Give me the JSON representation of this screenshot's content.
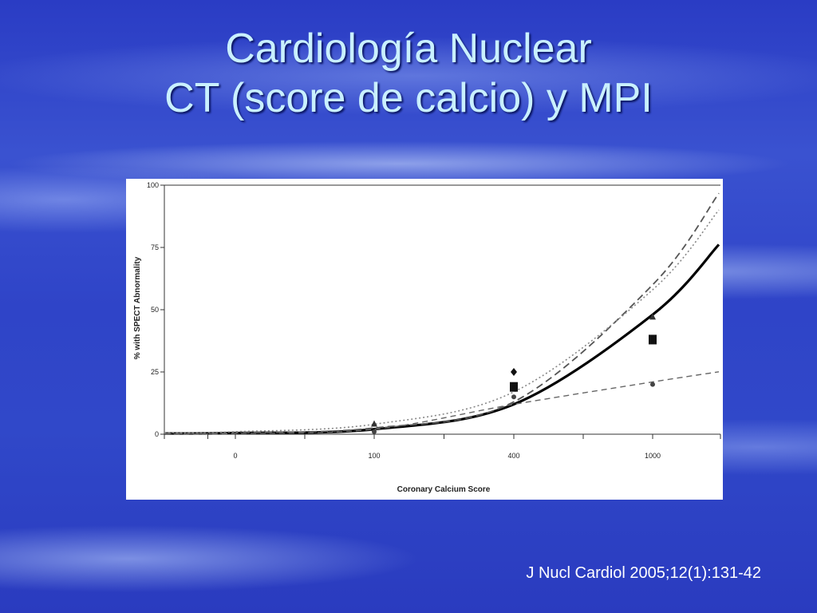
{
  "slide": {
    "title_line1": "Cardiología Nuclear",
    "title_line2": "CT (score de calcio) y MPI",
    "citation": "J Nucl Cardiol 2005;12(1):131-42"
  },
  "chart_data": {
    "type": "line",
    "xlabel": "Coronary Calcium Score",
    "ylabel": "% with SPECT Abnormality",
    "ylim": [
      0,
      100
    ],
    "x_ticks": [
      "0",
      "100",
      "400",
      "1000"
    ],
    "y_ticks": [
      "0",
      "25",
      "50",
      "75",
      "100"
    ],
    "grid": false,
    "series": [
      {
        "style": "solid-thick",
        "color": "#000000",
        "y_at_ticks": [
          0.5,
          2,
          12,
          48
        ]
      },
      {
        "style": "dashed-long",
        "color": "#555555",
        "y_at_ticks": [
          0.5,
          2.5,
          13,
          60
        ]
      },
      {
        "style": "dotted",
        "color": "#888888",
        "y_at_ticks": [
          1,
          4,
          17,
          58
        ]
      },
      {
        "style": "dashed-flat",
        "color": "#666666",
        "y_at_ticks": [
          0.3,
          2,
          12,
          21
        ]
      }
    ],
    "points": [
      {
        "x": "100",
        "y": 4,
        "marker": "triangle"
      },
      {
        "x": "100",
        "y": 1,
        "marker": "circle"
      },
      {
        "x": "400",
        "y": 25,
        "marker": "diamond"
      },
      {
        "x": "400",
        "y": 19,
        "marker": "square"
      },
      {
        "x": "400",
        "y": 15,
        "marker": "circle"
      },
      {
        "x": "1000",
        "y": 47,
        "marker": "triangle"
      },
      {
        "x": "1000",
        "y": 38,
        "marker": "square"
      },
      {
        "x": "1000",
        "y": 20,
        "marker": "circle"
      }
    ]
  }
}
